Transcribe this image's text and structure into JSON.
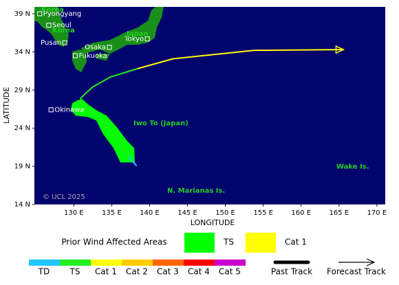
{
  "axes": {
    "xlabel": "LONGITUDE",
    "ylabel": "LATITUDE",
    "xlim": [
      124.8,
      171.1
    ],
    "ylim": [
      14,
      39.9
    ],
    "xticks": [
      {
        "value": 130,
        "label": "130 E"
      },
      {
        "value": 135,
        "label": "135 E"
      },
      {
        "value": 140,
        "label": "140 E"
      },
      {
        "value": 145,
        "label": "145 E"
      },
      {
        "value": 150,
        "label": "150 E"
      },
      {
        "value": 155,
        "label": "155 E"
      },
      {
        "value": 160,
        "label": "160 E"
      },
      {
        "value": 165,
        "label": "165 E"
      },
      {
        "value": 170,
        "label": "170 E"
      }
    ],
    "yticks": [
      {
        "value": 14,
        "label": "14 N"
      },
      {
        "value": 19,
        "label": "19 N"
      },
      {
        "value": 24,
        "label": "24 N"
      },
      {
        "value": 29,
        "label": "29 N"
      },
      {
        "value": 34,
        "label": "34 N"
      },
      {
        "value": 39,
        "label": "39 N"
      }
    ]
  },
  "places": [
    {
      "name": "Pyongyang",
      "lon": 125.5,
      "lat": 39.0
    },
    {
      "name": "Seoul",
      "lon": 126.7,
      "lat": 37.5
    },
    {
      "name": "Pusan",
      "lon": 128.8,
      "lat": 35.2
    },
    {
      "name": "Fukuoka",
      "lon": 130.2,
      "lat": 33.5
    },
    {
      "name": "Osaka",
      "lon": 134.7,
      "lat": 34.6
    },
    {
      "name": "Tokyo",
      "lon": 139.7,
      "lat": 35.7
    },
    {
      "name": "Okinawa",
      "lon": 127.0,
      "lat": 26.4
    }
  ],
  "regions": [
    "Korea",
    "Korea",
    "Japan",
    "Iwo To (Japan)",
    "Wake Is.",
    "N. Marianas Is."
  ],
  "copyright": "© UCL 2025",
  "track": [
    {
      "color": "#1ec8ff",
      "lon": [
        138.3,
        137.1
      ],
      "lat": [
        19.05,
        20.4
      ]
    },
    {
      "color": "#22ee22",
      "lon": [
        137.1,
        135.9,
        134.1,
        132.1,
        130.8,
        130.9,
        131.6,
        132.5,
        134.8,
        138.4
      ],
      "lat": [
        20.4,
        22.3,
        24.7,
        26.4,
        27.4,
        27.9,
        28.6,
        29.4,
        30.7,
        31.8
      ]
    },
    {
      "color": "#ffff00",
      "lon": [
        138.4,
        143.1,
        153.8,
        165.6
      ],
      "lat": [
        31.8,
        33.1,
        34.2,
        34.3
      ]
    }
  ],
  "wind_legend": {
    "title": "Prior Wind Affected Areas",
    "items": [
      {
        "label": "TS",
        "color": "#00ff00"
      },
      {
        "label": "Cat 1",
        "color": "#ffff00"
      }
    ]
  },
  "scale": [
    {
      "label": "TD",
      "color": "#1ec8ff"
    },
    {
      "label": "TS",
      "color": "#22ee22"
    },
    {
      "label": "Cat 1",
      "color": "#ffff00"
    },
    {
      "label": "Cat 2",
      "color": "#ffcc00"
    },
    {
      "label": "Cat 3",
      "color": "#ff6600"
    },
    {
      "label": "Cat 4",
      "color": "#ff0000"
    },
    {
      "label": "Cat 5",
      "color": "#cc00cc"
    }
  ],
  "track_legend": [
    "Past Track",
    "Forecast Track"
  ]
}
